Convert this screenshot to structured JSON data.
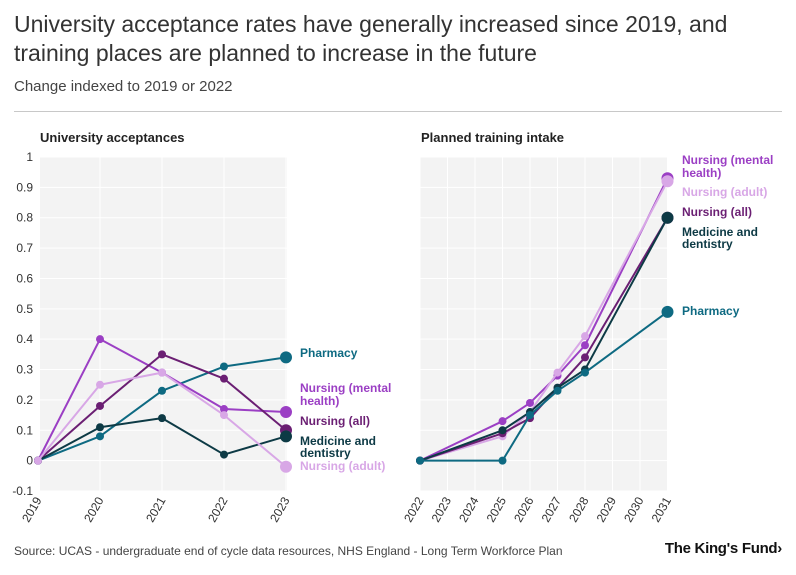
{
  "title": "University acceptance rates have generally increased since 2019, and training places are planned to increase in the future",
  "subtitle": "Change indexed to 2019 or 2022",
  "source": "Source: UCAS - undergraduate end of cycle data resources, NHS England - Long Term Workforce Plan",
  "logo": "The King's Fund",
  "logo_mark": "›",
  "colors": {
    "pharmacy": "#0e6a82",
    "nursing_mental_health": "#9b3fc4",
    "nursing_all": "#6b1f73",
    "medicine_dentistry": "#0d3a45",
    "nursing_adult": "#d8a7e6",
    "panel_bg": "#f3f3f3",
    "grid": "#ffffff"
  },
  "chart_data": [
    {
      "type": "line",
      "title": "University acceptances",
      "x": [
        "2019",
        "2020",
        "2021",
        "2022",
        "2023"
      ],
      "ylim": [
        -0.1,
        1
      ],
      "yticks": [
        "1",
        "0.9",
        "0.8",
        "0.7",
        "0.6",
        "0.5",
        "0.4",
        "0.3",
        "0.2",
        "0.1",
        "0",
        "-0.1"
      ],
      "series": [
        {
          "name": "Pharmacy",
          "key": "pharmacy",
          "values": [
            0,
            0.08,
            0.23,
            0.31,
            0.34
          ]
        },
        {
          "name": "Nursing (mental health)",
          "key": "nursing_mental_health",
          "values": [
            0,
            0.4,
            0.29,
            0.17,
            0.16
          ]
        },
        {
          "name": "Nursing (all)",
          "key": "nursing_all",
          "values": [
            0,
            0.18,
            0.35,
            0.27,
            0.1
          ]
        },
        {
          "name": "Medicine and dentistry",
          "key": "medicine_dentistry",
          "values": [
            0,
            0.11,
            0.14,
            0.02,
            0.08
          ]
        },
        {
          "name": "Nursing (adult)",
          "key": "nursing_adult",
          "values": [
            0,
            0.25,
            0.29,
            0.15,
            -0.02
          ]
        }
      ],
      "labels": [
        {
          "lines": [
            "Pharmacy"
          ],
          "key": "pharmacy"
        },
        {
          "lines": [
            "Nursing (mental",
            "health)"
          ],
          "key": "nursing_mental_health"
        },
        {
          "lines": [
            "Nursing (all)"
          ],
          "key": "nursing_all"
        },
        {
          "lines": [
            "Medicine and",
            "dentistry"
          ],
          "key": "medicine_dentistry"
        },
        {
          "lines": [
            "Nursing (adult)"
          ],
          "key": "nursing_adult"
        }
      ]
    },
    {
      "type": "line",
      "title": "Planned training intake",
      "x": [
        "2022",
        "2023",
        "2024",
        "2025",
        "2026",
        "2027",
        "2028",
        "2029",
        "2030",
        "2031"
      ],
      "ylim": [
        -0.1,
        1
      ],
      "series": [
        {
          "name": "Nursing (mental health)",
          "key": "nursing_mental_health",
          "points": [
            [
              2022,
              0
            ],
            [
              2025,
              0.13
            ],
            [
              2026,
              0.19
            ],
            [
              2027,
              0.28
            ],
            [
              2028,
              0.38
            ],
            [
              2031,
              0.93
            ]
          ]
        },
        {
          "name": "Nursing (adult)",
          "key": "nursing_adult",
          "points": [
            [
              2022,
              0
            ],
            [
              2025,
              0.08
            ],
            [
              2026,
              0.16
            ],
            [
              2027,
              0.29
            ],
            [
              2028,
              0.41
            ],
            [
              2031,
              0.92
            ]
          ]
        },
        {
          "name": "Nursing (all)",
          "key": "nursing_all",
          "points": [
            [
              2022,
              0
            ],
            [
              2025,
              0.09
            ],
            [
              2026,
              0.14
            ],
            [
              2027,
              0.24
            ],
            [
              2028,
              0.34
            ],
            [
              2031,
              0.8
            ]
          ]
        },
        {
          "name": "Medicine and dentistry",
          "key": "medicine_dentistry",
          "points": [
            [
              2022,
              0
            ],
            [
              2025,
              0.1
            ],
            [
              2026,
              0.16
            ],
            [
              2027,
              0.24
            ],
            [
              2028,
              0.3
            ],
            [
              2031,
              0.8
            ]
          ]
        },
        {
          "name": "Pharmacy",
          "key": "pharmacy",
          "points": [
            [
              2022,
              0
            ],
            [
              2025,
              0
            ],
            [
              2026,
              0.15
            ],
            [
              2027,
              0.23
            ],
            [
              2028,
              0.29
            ],
            [
              2031,
              0.49
            ]
          ]
        }
      ],
      "labels": [
        {
          "lines": [
            "Nursing (mental",
            "health)"
          ],
          "key": "nursing_mental_health"
        },
        {
          "lines": [
            "Nursing (adult)"
          ],
          "key": "nursing_adult"
        },
        {
          "lines": [
            "Nursing (all)"
          ],
          "key": "nursing_all"
        },
        {
          "lines": [
            "Medicine and",
            "dentistry"
          ],
          "key": "medicine_dentistry"
        },
        {
          "lines": [
            "Pharmacy"
          ],
          "key": "pharmacy"
        }
      ]
    }
  ]
}
